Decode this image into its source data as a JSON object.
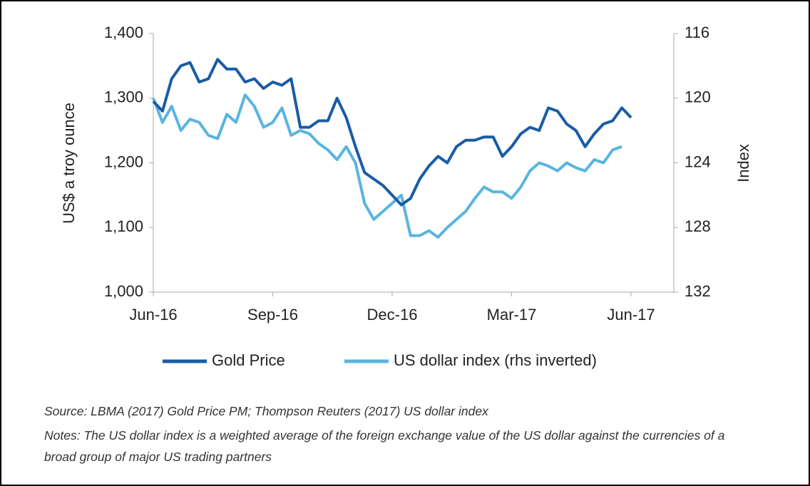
{
  "chart_data": {
    "type": "line",
    "x_label_left": "US$ a troy ounce",
    "y2_label": "Index",
    "categories": [
      "Jun-16",
      null,
      null,
      null,
      null,
      null,
      null,
      null,
      null,
      null,
      null,
      null,
      null,
      "Sep-16",
      null,
      null,
      null,
      null,
      null,
      null,
      null,
      null,
      null,
      null,
      null,
      null,
      "Dec-16",
      null,
      null,
      null,
      null,
      null,
      null,
      null,
      null,
      null,
      null,
      null,
      null,
      "Mar-17",
      null,
      null,
      null,
      null,
      null,
      null,
      null,
      null,
      null,
      null,
      null,
      null,
      "Jun-17"
    ],
    "series": [
      {
        "name": "Gold Price",
        "color": "#1a5ca6",
        "values": [
          1295,
          1280,
          1330,
          1350,
          1355,
          1325,
          1330,
          1360,
          1345,
          1345,
          1325,
          1330,
          1315,
          1325,
          1320,
          1330,
          1255,
          1255,
          1265,
          1265,
          1300,
          1270,
          1225,
          1185,
          1175,
          1165,
          1150,
          1135,
          1145,
          1175,
          1195,
          1210,
          1200,
          1225,
          1235,
          1235,
          1240,
          1240,
          1210,
          1225,
          1245,
          1255,
          1250,
          1285,
          1280,
          1260,
          1250,
          1225,
          1245,
          1260,
          1265,
          1285,
          1270
        ]
      },
      {
        "name": "US dollar index (rhs inverted)",
        "color": "#5ab4e0",
        "axis": "y2",
        "values": [
          120.0,
          121.5,
          120.5,
          122.0,
          121.3,
          121.5,
          122.3,
          122.5,
          121.0,
          121.5,
          119.8,
          120.5,
          121.8,
          121.5,
          120.6,
          122.3,
          122.0,
          122.2,
          122.8,
          123.2,
          123.8,
          123.0,
          124.0,
          126.5,
          127.5,
          127.0,
          126.5,
          126.0,
          128.5,
          128.5,
          128.2,
          128.6,
          128.0,
          127.5,
          127.0,
          126.2,
          125.5,
          125.8,
          125.8,
          126.2,
          125.5,
          124.5,
          124.0,
          124.2,
          124.5,
          124.0,
          124.3,
          124.5,
          123.8,
          124.0,
          123.2,
          123.0,
          null
        ]
      }
    ],
    "ylim": [
      1000,
      1400
    ],
    "yticks": [
      {
        "value": 1000,
        "label": "1,000"
      },
      {
        "value": 1100,
        "label": "1,100"
      },
      {
        "value": 1200,
        "label": "1,200"
      },
      {
        "value": 1300,
        "label": "1,300"
      },
      {
        "value": 1400,
        "label": "1,400"
      }
    ],
    "y2lim": [
      132,
      116
    ],
    "y2ticks": [
      132,
      128,
      124,
      120,
      116
    ],
    "legend": "bottom",
    "source": "Source: LBMA (2017) Gold Price PM; Thompson Reuters (2017) US dollar index",
    "notes": "Notes: The US dollar index is a weighted average of the foreign exchange value of the US dollar against the currencies of a broad group of major US trading partners"
  }
}
